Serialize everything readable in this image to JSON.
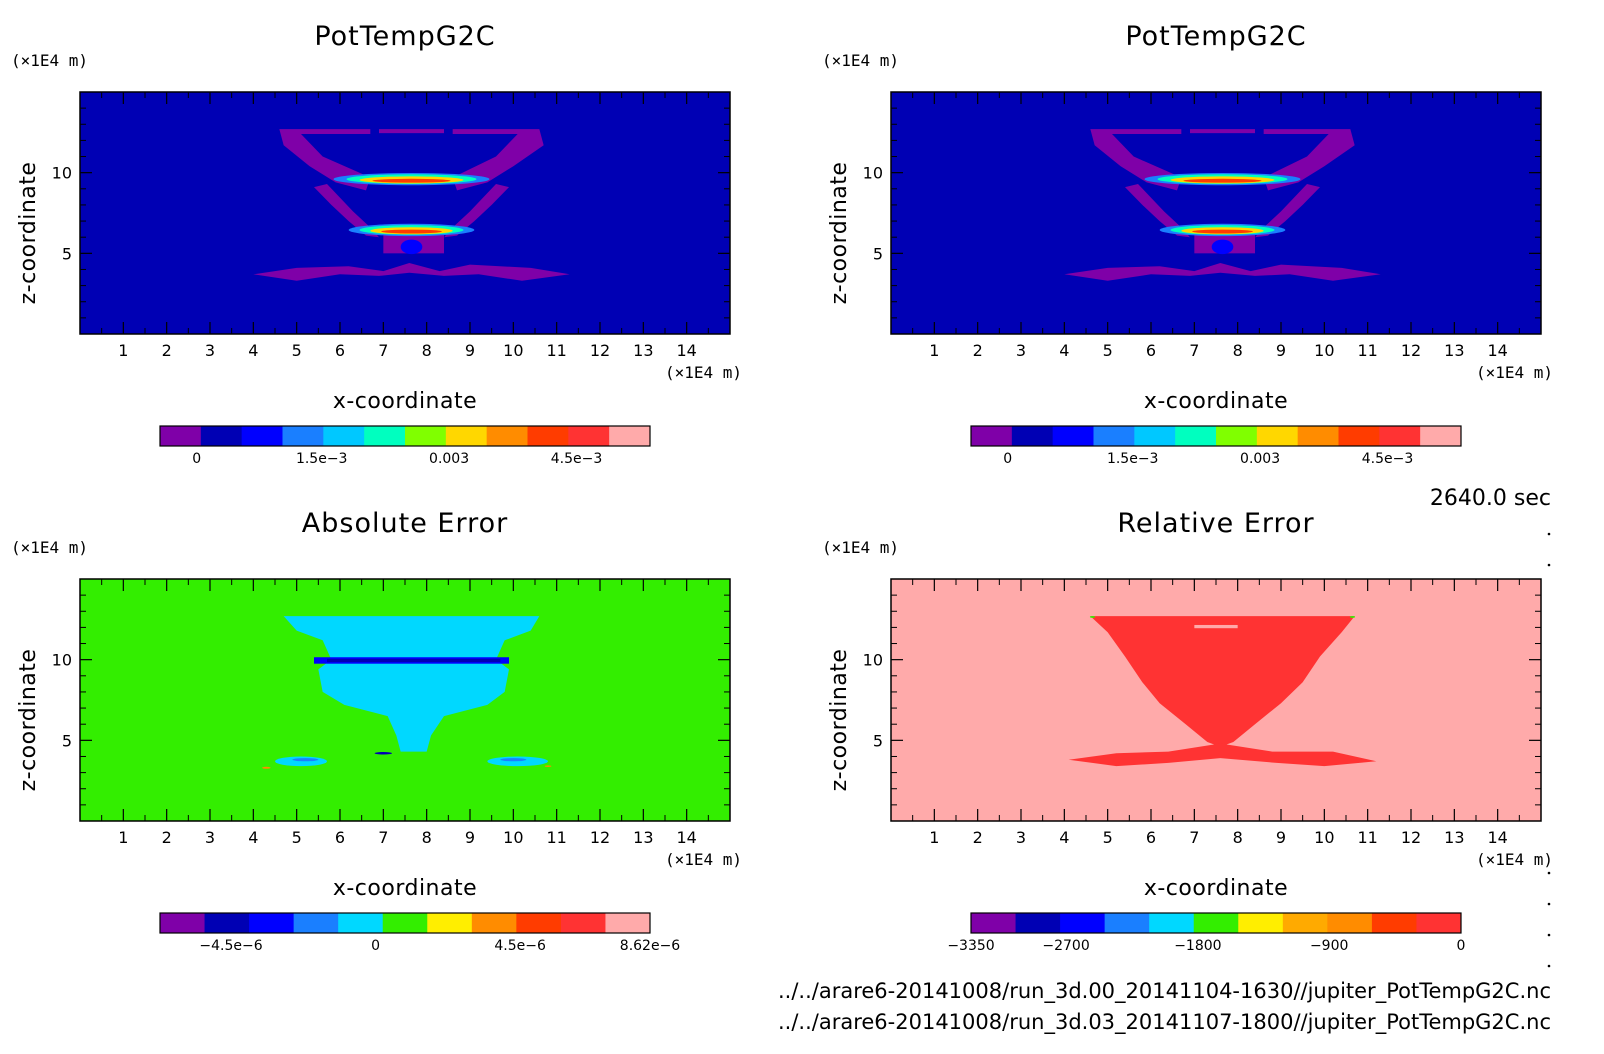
{
  "colors": {
    "purple": "#7f00a8",
    "navy": "#0000b4",
    "blue": "#0000ff",
    "sky": "#1a7fff",
    "cyan": "#00d8ff",
    "teal": "#00ffbf",
    "green": "#33ee00",
    "yellow": "#ffd700",
    "orange": "#ff8c00",
    "redorange": "#ff3c00",
    "red": "#ff3333",
    "pink": "#ffaaaa"
  },
  "chart_data": [
    {
      "type": "heatmap",
      "title": "PotTempG2C",
      "xlabel": "x-coordinate",
      "ylabel": "z-coordinate",
      "x_unit": "(×1E4 m)",
      "y_unit": "(×1E4 m)",
      "xlim": [
        0,
        15
      ],
      "ylim": [
        0,
        15
      ],
      "x_ticks": [
        1,
        2,
        3,
        4,
        5,
        6,
        7,
        8,
        9,
        10,
        11,
        12,
        13,
        14
      ],
      "y_ticks": [
        5,
        10
      ],
      "background": "#0000b4",
      "colorbar": {
        "colors": [
          "#7f00a8",
          "#0000b4",
          "#0000ff",
          "#1a7fff",
          "#00c8ff",
          "#00ffbf",
          "#80ff00",
          "#ffd700",
          "#ff8c00",
          "#ff3c00",
          "#ff3333",
          "#ffaaaa"
        ],
        "labels": [
          {
            "text": "0",
            "pos": 0.075
          },
          {
            "text": "1.5e-3",
            "pos": 0.33
          },
          {
            "text": "0.003",
            "pos": 0.59
          },
          {
            "text": "4.5e-3",
            "pos": 0.85
          }
        ]
      }
    },
    {
      "type": "heatmap",
      "title": "PotTempG2C",
      "xlabel": "x-coordinate",
      "ylabel": "z-coordinate",
      "x_unit": "(×1E4 m)",
      "y_unit": "(×1E4 m)",
      "xlim": [
        0,
        15
      ],
      "ylim": [
        0,
        15
      ],
      "x_ticks": [
        1,
        2,
        3,
        4,
        5,
        6,
        7,
        8,
        9,
        10,
        11,
        12,
        13,
        14
      ],
      "y_ticks": [
        5,
        10
      ],
      "background": "#0000b4",
      "colorbar": {
        "colors": [
          "#7f00a8",
          "#0000b4",
          "#0000ff",
          "#1a7fff",
          "#00c8ff",
          "#00ffbf",
          "#80ff00",
          "#ffd700",
          "#ff8c00",
          "#ff3c00",
          "#ff3333",
          "#ffaaaa"
        ],
        "labels": [
          {
            "text": "0",
            "pos": 0.075
          },
          {
            "text": "1.5e-3",
            "pos": 0.33
          },
          {
            "text": "0.003",
            "pos": 0.59
          },
          {
            "text": "4.5e-3",
            "pos": 0.85
          }
        ]
      }
    },
    {
      "type": "heatmap",
      "title": "Absolute Error",
      "xlabel": "x-coordinate",
      "ylabel": "z-coordinate",
      "x_unit": "(×1E4 m)",
      "y_unit": "(×1E4 m)",
      "xlim": [
        0,
        15
      ],
      "ylim": [
        0,
        15
      ],
      "x_ticks": [
        1,
        2,
        3,
        4,
        5,
        6,
        7,
        8,
        9,
        10,
        11,
        12,
        13,
        14
      ],
      "y_ticks": [
        5,
        10
      ],
      "background": "#33ee00",
      "colorbar": {
        "colors": [
          "#7f00a8",
          "#0000b4",
          "#0000ff",
          "#1a7fff",
          "#00d8ff",
          "#33ee00",
          "#ffee00",
          "#ff8c00",
          "#ff3c00",
          "#ff3333",
          "#ffaaaa"
        ],
        "labels": [
          {
            "text": "-4.5e-6",
            "pos": 0.145
          },
          {
            "text": "0",
            "pos": 0.44
          },
          {
            "text": "4.5e-6",
            "pos": 0.735
          },
          {
            "text": "8.62e-6",
            "pos": 1.0
          }
        ]
      }
    },
    {
      "type": "heatmap",
      "title": "Relative Error",
      "xlabel": "x-coordinate",
      "ylabel": "z-coordinate",
      "x_unit": "(×1E4 m)",
      "y_unit": "(×1E4 m)",
      "xlim": [
        0,
        15
      ],
      "ylim": [
        0,
        15
      ],
      "x_ticks": [
        1,
        2,
        3,
        4,
        5,
        6,
        7,
        8,
        9,
        10,
        11,
        12,
        13,
        14
      ],
      "y_ticks": [
        5,
        10
      ],
      "background": "#ffaaaa",
      "colorbar": {
        "colors": [
          "#7f00a8",
          "#0000b4",
          "#0000ff",
          "#1a7fff",
          "#00d8ff",
          "#33ee00",
          "#ffee00",
          "#ffaa00",
          "#ff8c00",
          "#ff3c00",
          "#ff3333"
        ],
        "labels": [
          {
            "text": "-3350",
            "pos": 0.0
          },
          {
            "text": "-2700",
            "pos": 0.194
          },
          {
            "text": "-1800",
            "pos": 0.463
          },
          {
            "text": "-900",
            "pos": 0.731
          },
          {
            "text": "0",
            "pos": 1.0
          }
        ]
      }
    }
  ],
  "time_label": "2640.0 sec",
  "file_paths": [
    "../../arare6-20141008/run_3d.00_20141104-1630//jupiter_PotTempG2C.nc",
    "../../arare6-20141008/run_3d.03_20141107-1800//jupiter_PotTempG2C.nc"
  ]
}
